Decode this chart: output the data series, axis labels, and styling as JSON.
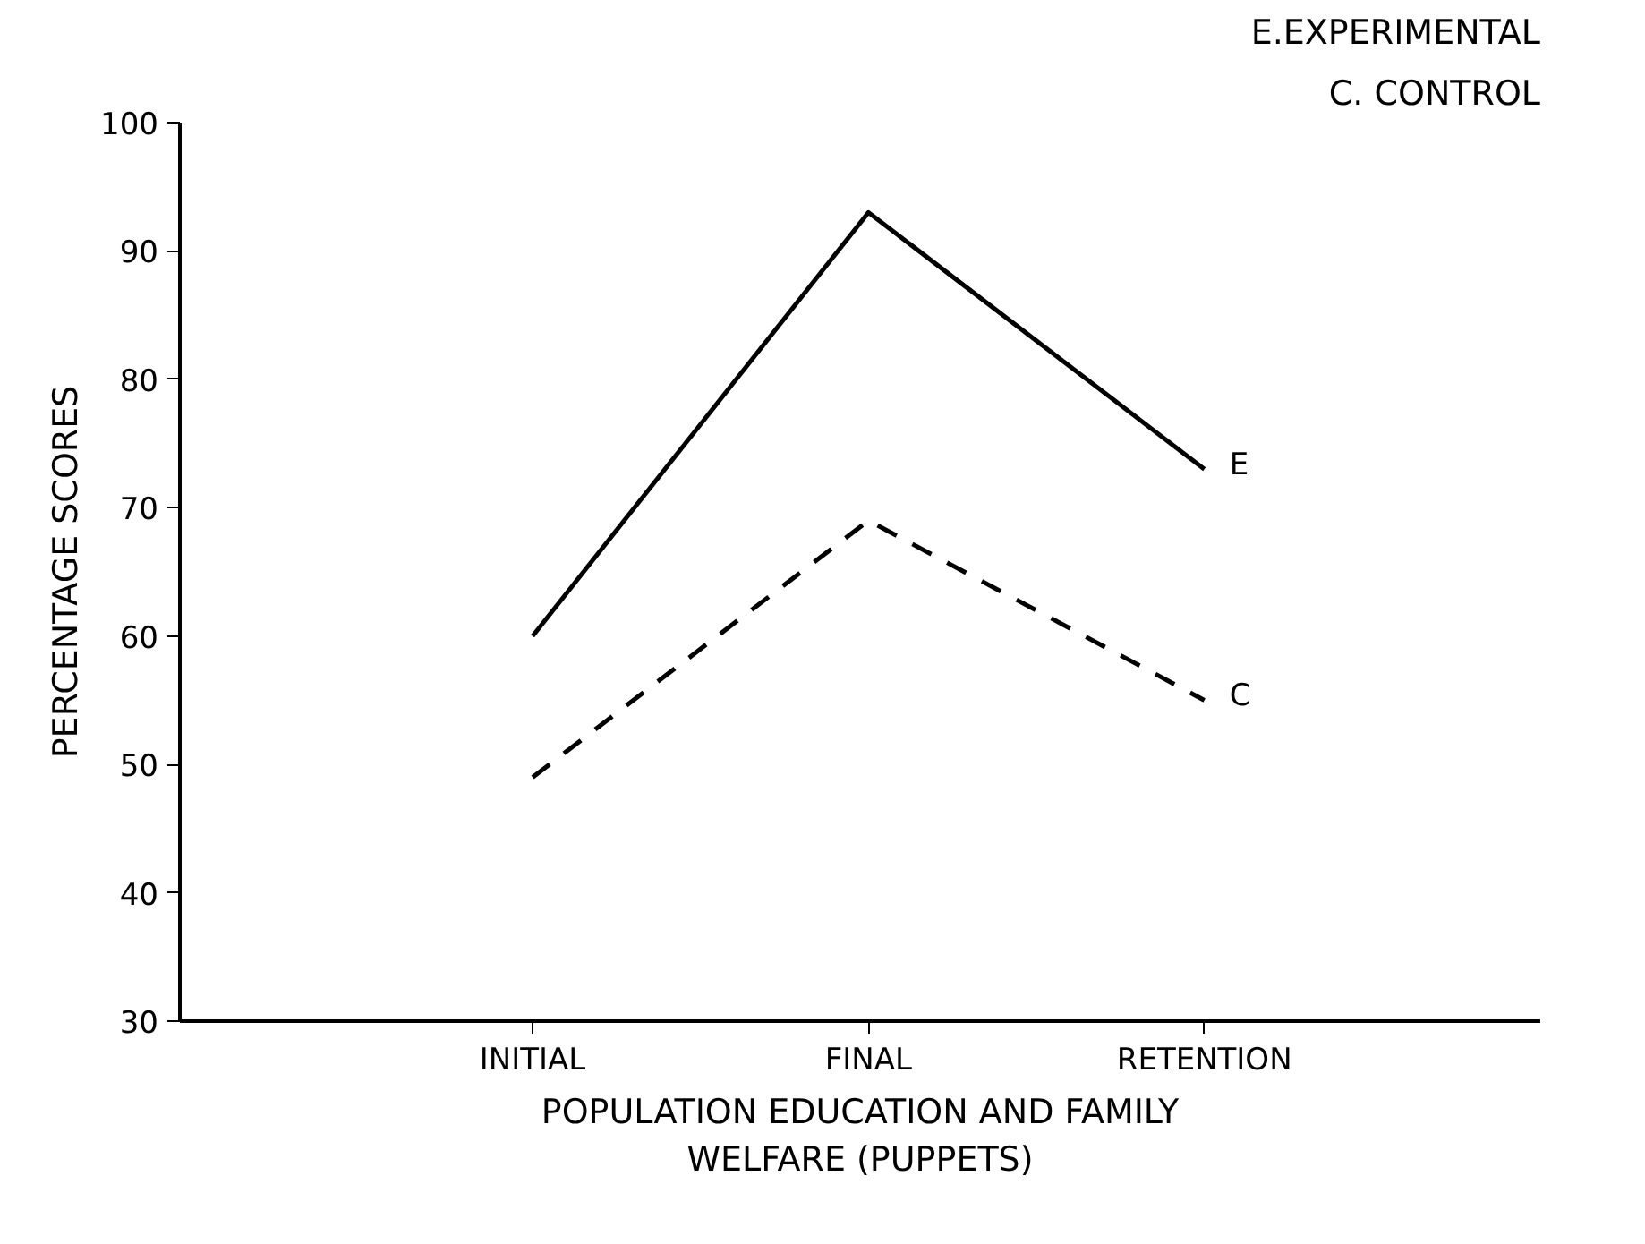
{
  "chart_data": {
    "type": "line",
    "xlabel": "POPULATION EDUCATION AND FAMILY\nWELFARE (PUPPETS)",
    "ylabel": "PERCENTAGE SCORES",
    "categories": [
      "INITIAL",
      "FINAL",
      "RETENTION"
    ],
    "series": [
      {
        "name": "E",
        "color": "#000000",
        "values": [
          60,
          93,
          73
        ],
        "line_style": "solid"
      },
      {
        "name": "C",
        "color": "#000000",
        "values": [
          49,
          69,
          55
        ],
        "line_style": "dashed"
      }
    ],
    "ylim": [
      30,
      100
    ],
    "yticks": [
      30,
      40,
      50,
      60,
      70,
      80,
      90,
      100
    ],
    "annotations": [
      "E.EXPERIMENTAL",
      "C. CONTROL"
    ],
    "grid": false,
    "legend": false,
    "marker": "none"
  }
}
